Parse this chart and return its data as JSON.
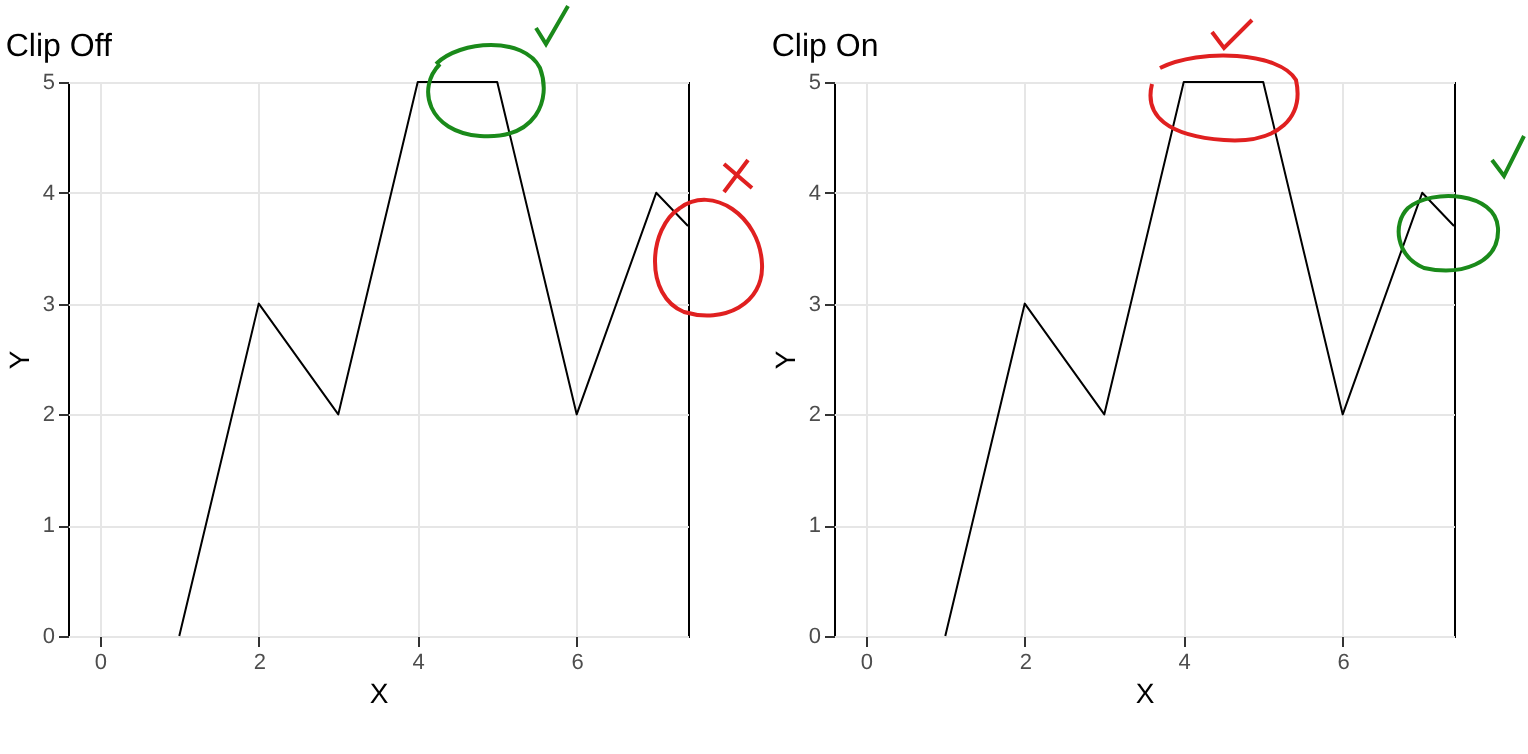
{
  "chart_data": [
    {
      "type": "line",
      "title": "Clip Off",
      "xlabel": "X",
      "ylabel": "Y",
      "x": [
        1,
        2,
        3,
        4,
        5,
        6,
        7,
        7.4
      ],
      "series": [
        {
          "color": "#000000",
          "values": [
            0,
            3,
            2,
            5,
            5,
            2,
            4,
            3.7
          ]
        }
      ],
      "xlim": [
        -0.4,
        7.4
      ],
      "xticks": [
        0,
        2,
        4,
        6
      ],
      "ylim": [
        0,
        5
      ],
      "yticks": [
        0,
        1,
        2,
        3,
        4,
        5
      ],
      "grid": true,
      "marker": "none",
      "line_style": "solid"
    },
    {
      "type": "line",
      "title": "Clip On",
      "xlabel": "X",
      "ylabel": "Y",
      "x": [
        1,
        2,
        3,
        4,
        5,
        6,
        7,
        7.4
      ],
      "series": [
        {
          "color": "#000000",
          "values": [
            0,
            3,
            2,
            5,
            5,
            2,
            4,
            3.7
          ]
        }
      ],
      "xlim": [
        -0.4,
        7.4
      ],
      "xticks": [
        0,
        2,
        4,
        6
      ],
      "ylim": [
        0,
        5
      ],
      "yticks": [
        0,
        1,
        2,
        3,
        4,
        5
      ],
      "grid": true,
      "marker": "none",
      "line_style": "solid"
    }
  ]
}
